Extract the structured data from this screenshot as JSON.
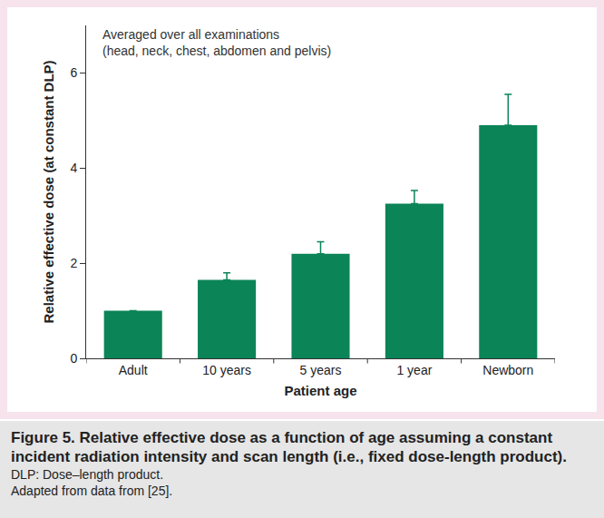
{
  "chart_data": {
    "type": "bar",
    "annotation": "Averaged over all examinations\n(head, neck, chest, abdomen and pelvis)",
    "x_label": "Patient age",
    "y_label": "Relative effective dose (at constant DLP)",
    "categories": [
      "Adult",
      "10 years",
      "5 years",
      "1 year",
      "Newborn"
    ],
    "values": [
      1.0,
      1.65,
      2.2,
      3.25,
      4.9
    ],
    "errors": [
      null,
      0.15,
      0.25,
      0.28,
      0.65
    ],
    "color": "#0b8457",
    "ylim": [
      0,
      7
    ],
    "yticks": [
      0,
      2,
      4,
      6
    ],
    "grid": false,
    "caption": {
      "title": "Figure 5. Relative effective dose as a function of age assuming a constant incident radiation intensity and scan length (i.e., fixed dose-length product).",
      "notes": [
        "DLP: Dose–length product.",
        "Adapted from data from [25]."
      ]
    }
  }
}
